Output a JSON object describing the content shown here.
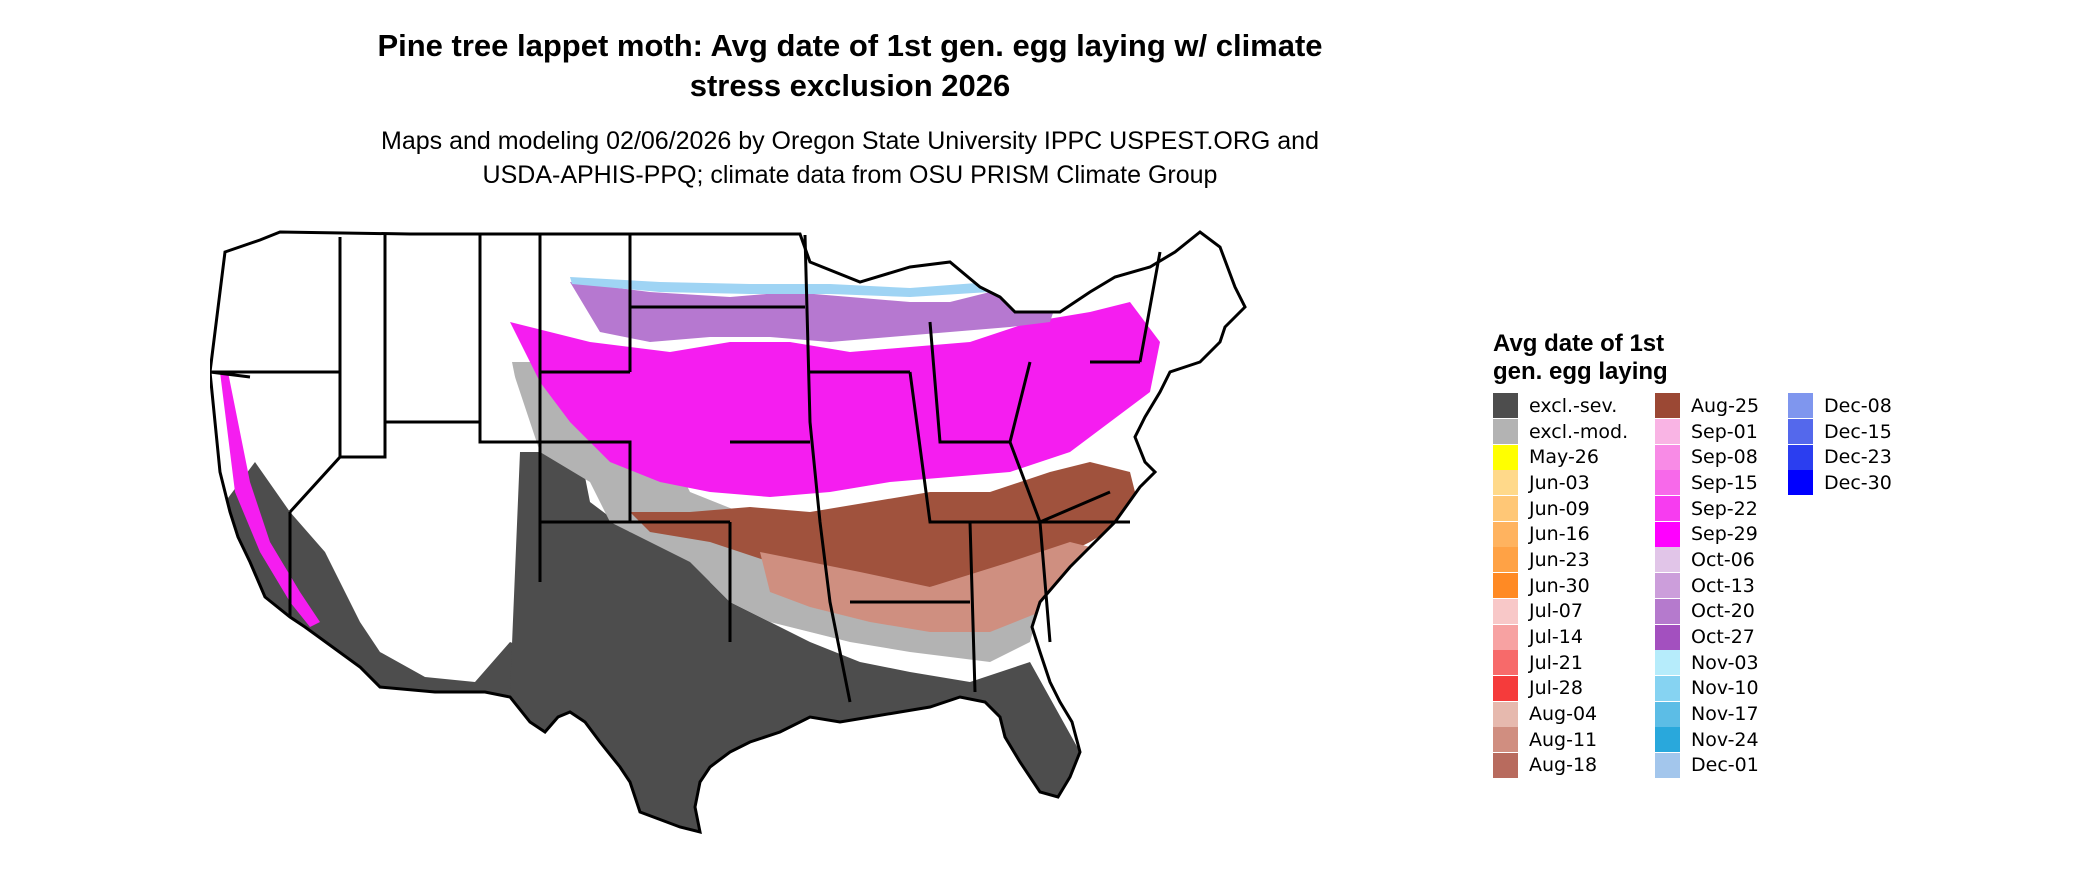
{
  "title_lines": [
    "Pine tree lappet moth: Avg date of 1st gen. egg laying w/ climate",
    "stress exclusion 2026"
  ],
  "subtitle_lines": [
    "Maps and modeling 02/06/2026 by Oregon State University IPPC USPEST.ORG and",
    "USDA-APHIS-PPQ; climate data from OSU PRISM Climate Group"
  ],
  "map": {
    "region": "Contiguous United States",
    "colors": {
      "excl_severe": "#4d4d4d",
      "excl_moderate": "#b3b3b3",
      "border": "#000000",
      "background": "#ffffff",
      "south_brown": "#a0523d",
      "midwest_magenta": "#f51df0",
      "north_purple": "#b678d0",
      "southeast_pink": "#cf8f80",
      "coastal_light_blue": "#9fd4f4"
    }
  },
  "legend": {
    "title_lines": [
      "Avg date of 1st",
      "gen. egg laying"
    ],
    "items": [
      {
        "label": "excl.-sev.",
        "color": "#4d4d4d"
      },
      {
        "label": "excl.-mod.",
        "color": "#b3b3b3"
      },
      {
        "label": "May-26",
        "color": "#ffff00"
      },
      {
        "label": "Jun-03",
        "color": "#ffd98a"
      },
      {
        "label": "Jun-09",
        "color": "#ffc776"
      },
      {
        "label": "Jun-16",
        "color": "#ffb35f"
      },
      {
        "label": "Jun-23",
        "color": "#ffa245"
      },
      {
        "label": "Jun-30",
        "color": "#ff8a24"
      },
      {
        "label": "Jul-07",
        "color": "#f8c8c8"
      },
      {
        "label": "Jul-14",
        "color": "#f7a2a2"
      },
      {
        "label": "Jul-21",
        "color": "#f76a6a"
      },
      {
        "label": "Jul-28",
        "color": "#f53b3b"
      },
      {
        "label": "Aug-04",
        "color": "#e6b9ae"
      },
      {
        "label": "Aug-11",
        "color": "#d08e80"
      },
      {
        "label": "Aug-18",
        "color": "#b86b5e"
      },
      {
        "label": "Aug-25",
        "color": "#9b4834"
      },
      {
        "label": "Sep-01",
        "color": "#f9b4e4"
      },
      {
        "label": "Sep-08",
        "color": "#f88be6"
      },
      {
        "label": "Sep-15",
        "color": "#f769ea"
      },
      {
        "label": "Sep-22",
        "color": "#f73cf0"
      },
      {
        "label": "Sep-29",
        "color": "#ff00ff"
      },
      {
        "label": "Oct-06",
        "color": "#e1c5e8"
      },
      {
        "label": "Oct-13",
        "color": "#cc9edb"
      },
      {
        "label": "Oct-20",
        "color": "#b57acd"
      },
      {
        "label": "Oct-27",
        "color": "#a350bf"
      },
      {
        "label": "Nov-03",
        "color": "#b6ecfb"
      },
      {
        "label": "Nov-10",
        "color": "#86d3f2"
      },
      {
        "label": "Nov-17",
        "color": "#5cbde6"
      },
      {
        "label": "Nov-24",
        "color": "#29a8dc"
      },
      {
        "label": "Dec-01",
        "color": "#a3c6ec"
      },
      {
        "label": "Dec-08",
        "color": "#7f96ee"
      },
      {
        "label": "Dec-15",
        "color": "#5468ec"
      },
      {
        "label": "Dec-23",
        "color": "#2b3ef0"
      },
      {
        "label": "Dec-30",
        "color": "#0000ff"
      }
    ]
  }
}
